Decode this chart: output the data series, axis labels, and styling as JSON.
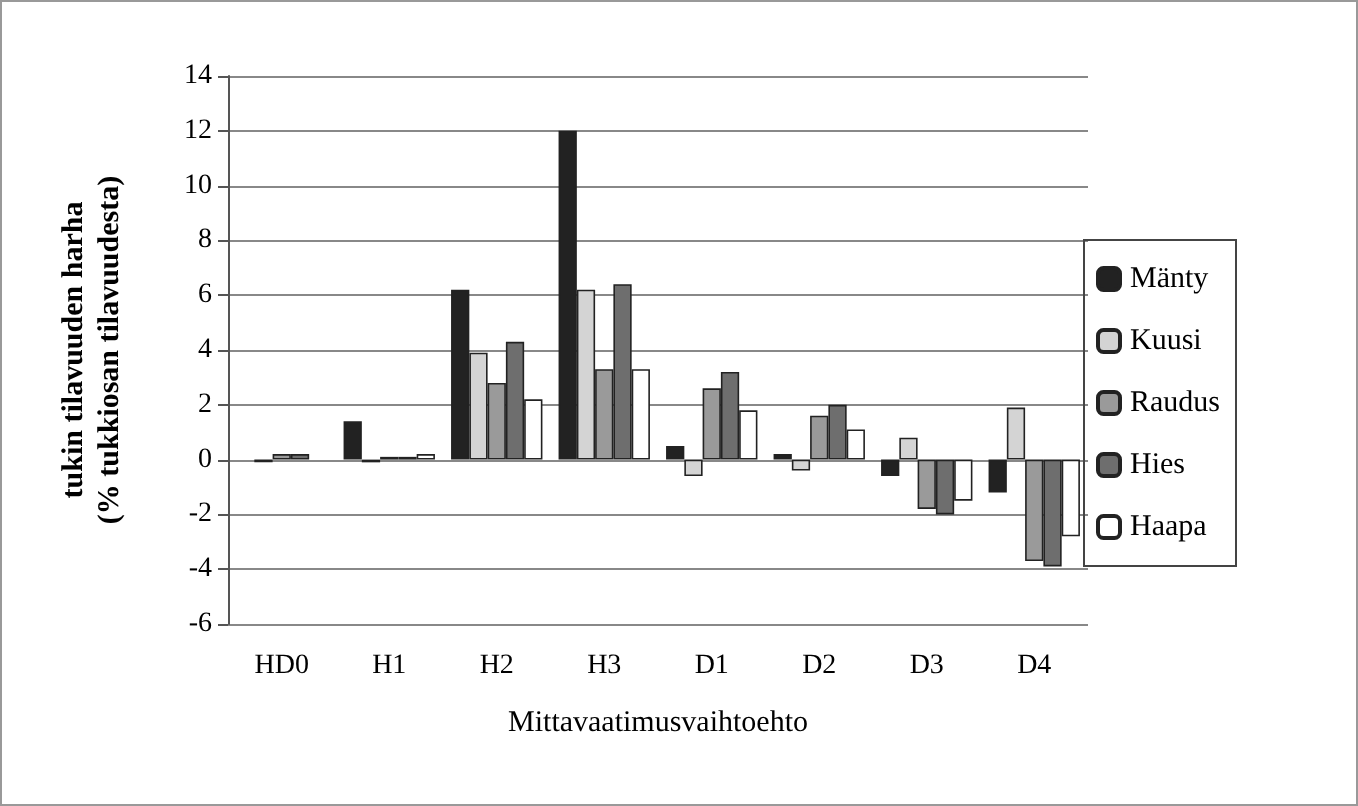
{
  "chart_data": {
    "type": "bar",
    "xlabel": "Mittavaatimusvaihtoehto",
    "ylabel": "tukin tilavuuden harha\n(% tukkiosan tilavuudesta)",
    "categories": [
      "HD0",
      "H1",
      "H2",
      "H3",
      "D1",
      "D2",
      "D3",
      "D4"
    ],
    "series": [
      {
        "name": "Mänty",
        "color": "#222222",
        "values": [
          null,
          1.4,
          6.2,
          12,
          0.5,
          0.2,
          -0.6,
          -1.2
        ]
      },
      {
        "name": "Kuusi",
        "color": "#d4d4d4",
        "values": [
          -0.1,
          -0.1,
          3.9,
          6.2,
          -0.6,
          -0.4,
          0.8,
          1.9
        ]
      },
      {
        "name": "Raudus",
        "color": "#9a9a9a",
        "values": [
          0.2,
          0.1,
          2.8,
          3.3,
          2.6,
          1.6,
          -1.8,
          -3.7
        ]
      },
      {
        "name": "Hies",
        "color": "#6e6e6e",
        "values": [
          0.2,
          0.1,
          4.3,
          6.4,
          3.2,
          2.0,
          -2.0,
          -3.9
        ]
      },
      {
        "name": "Haapa",
        "color": "#ffffff",
        "values": [
          null,
          0.2,
          2.2,
          3.3,
          1.8,
          1.1,
          -1.5,
          -2.8
        ]
      }
    ],
    "ylim": [
      -6,
      14
    ],
    "yticks": [
      -6,
      -4,
      -2,
      0,
      2,
      4,
      6,
      8,
      10,
      12,
      14
    ],
    "grid": "y",
    "legend": "right"
  }
}
